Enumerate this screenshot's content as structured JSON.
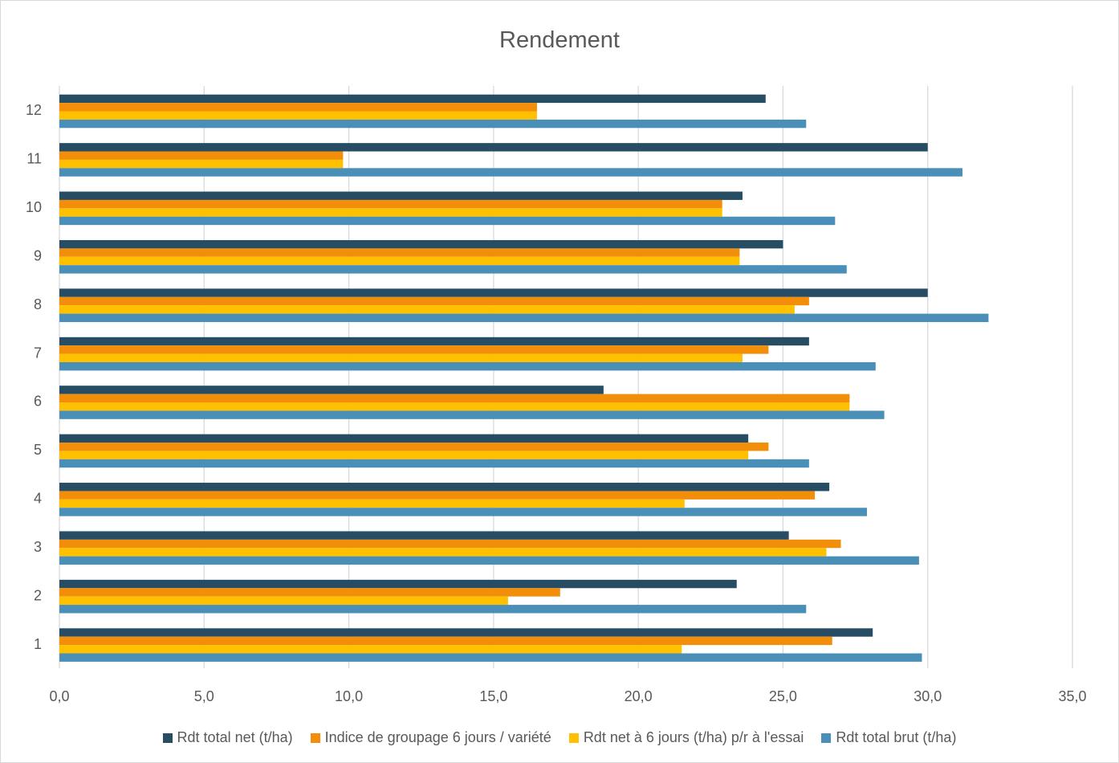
{
  "chart_data": {
    "type": "bar",
    "orientation": "horizontal",
    "title": "Rendement",
    "xlabel": "",
    "ylabel": "",
    "xlim": [
      0,
      35
    ],
    "x_ticks": [
      "0,0",
      "5,0",
      "10,0",
      "15,0",
      "20,0",
      "25,0",
      "30,0",
      "35,0"
    ],
    "categories": [
      "1",
      "2",
      "3",
      "4",
      "5",
      "6",
      "7",
      "8",
      "9",
      "10",
      "11",
      "12"
    ],
    "grid": "vertical",
    "legend_position": "bottom",
    "series": [
      {
        "name": "Rdt total net (t/ha)",
        "color": "#264d63",
        "values": [
          28.1,
          23.4,
          25.2,
          26.6,
          23.8,
          18.8,
          25.9,
          30.0,
          25.0,
          23.6,
          30.0,
          24.4
        ]
      },
      {
        "name": "Indice de groupage 6 jours / variété",
        "color": "#f28e0a",
        "values": [
          26.7,
          17.3,
          27.0,
          26.1,
          24.5,
          27.3,
          24.5,
          25.9,
          23.5,
          22.9,
          9.8,
          16.5
        ]
      },
      {
        "name": "Rdt net à 6 jours (t/ha) p/r à l'essai",
        "color": "#ffc000",
        "values": [
          21.5,
          15.5,
          26.5,
          21.6,
          23.8,
          27.3,
          23.6,
          25.4,
          23.5,
          22.9,
          9.8,
          16.5
        ]
      },
      {
        "name": "Rdt total brut (t/ha)",
        "color": "#4a8fb8",
        "values": [
          29.8,
          25.8,
          29.7,
          27.9,
          25.9,
          28.5,
          28.2,
          32.1,
          27.2,
          26.8,
          31.2,
          25.8
        ]
      }
    ]
  }
}
